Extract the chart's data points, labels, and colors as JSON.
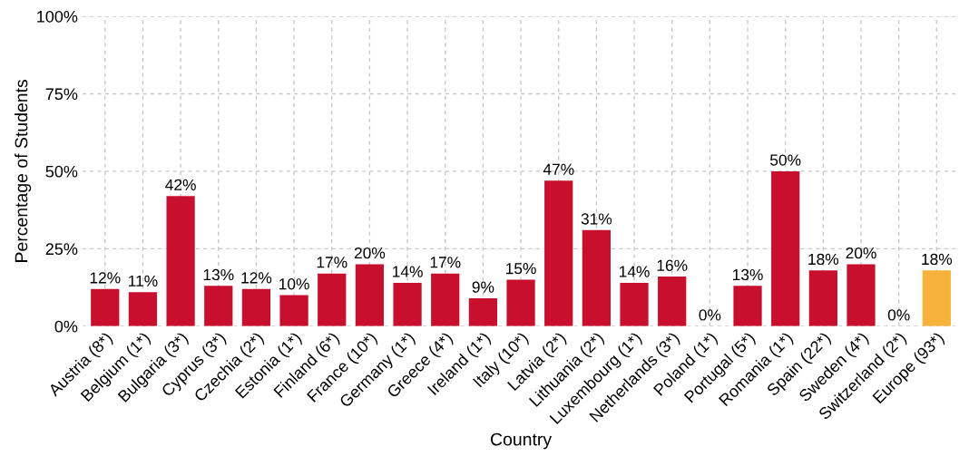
{
  "chart_data": {
    "type": "bar",
    "xlabel": "Country",
    "ylabel": "Percentage of Students",
    "categories": [
      "Austria (8*)",
      "Belgium (1*)",
      "Bulgaria (3*)",
      "Cyprus (3*)",
      "Czechia (2*)",
      "Estonia (1*)",
      "Finland (6*)",
      "France (10*)",
      "Germany (1*)",
      "Greece (4*)",
      "Ireland (1*)",
      "Italy (10*)",
      "Latvia (2*)",
      "Lithuania (2*)",
      "Luxembourg (1*)",
      "Netherlands (3*)",
      "Poland (1*)",
      "Portugal (5*)",
      "Romania (1*)",
      "Spain (22*)",
      "Sweden (4*)",
      "Switzerland (2*)",
      "Europe (93*)"
    ],
    "values": [
      12,
      11,
      42,
      13,
      12,
      10,
      17,
      20,
      14,
      17,
      9,
      15,
      47,
      31,
      14,
      16,
      0,
      13,
      50,
      18,
      20,
      0,
      18
    ],
    "value_labels": [
      "12%",
      "11%",
      "42%",
      "13%",
      "12%",
      "10%",
      "17%",
      "20%",
      "14%",
      "17%",
      "9%",
      "15%",
      "47%",
      "31%",
      "14%",
      "16%",
      "0%",
      "13%",
      "50%",
      "18%",
      "20%",
      "0%",
      "18%"
    ],
    "colors": [
      "#c8102e",
      "#c8102e",
      "#c8102e",
      "#c8102e",
      "#c8102e",
      "#c8102e",
      "#c8102e",
      "#c8102e",
      "#c8102e",
      "#c8102e",
      "#c8102e",
      "#c8102e",
      "#c8102e",
      "#c8102e",
      "#c8102e",
      "#c8102e",
      "#c8102e",
      "#c8102e",
      "#c8102e",
      "#c8102e",
      "#c8102e",
      "#c8102e",
      "#f6b23a"
    ],
    "ylim": [
      0,
      100
    ],
    "yticks": [
      {
        "value": 0,
        "label": "0%"
      },
      {
        "value": 25,
        "label": "25%"
      },
      {
        "value": 50,
        "label": "50%"
      },
      {
        "value": 75,
        "label": "75%"
      },
      {
        "value": 100,
        "label": "100%"
      }
    ],
    "grid": true
  }
}
